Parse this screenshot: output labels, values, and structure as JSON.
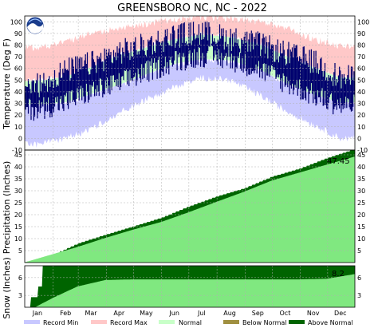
{
  "chart_data": {
    "type": "area",
    "title": "GREENSBORO NC, NC - 2022",
    "months": [
      "Jan",
      "Feb",
      "Mar",
      "Apr",
      "May",
      "Jun",
      "Jul",
      "Aug",
      "Sep",
      "Oct",
      "Nov",
      "Dec"
    ],
    "logo": "noaa-logo",
    "grid": true,
    "legend_position": "bottom",
    "legend": [
      {
        "label": "Record Min",
        "color": "#c8c8ff"
      },
      {
        "label": "Record Max",
        "color": "#ffc8c8"
      },
      {
        "label": "Normal",
        "color": "#c8ffc8"
      },
      {
        "label": "Below Normal",
        "color": "#a09040"
      },
      {
        "label": "Above Normal",
        "color": "#006400"
      }
    ],
    "panels": {
      "temperature": {
        "ylabel": "Temperature (Deg F)",
        "ylim": [
          -10,
          105
        ],
        "yticks": [
          100,
          90,
          80,
          70,
          60,
          50,
          40,
          30,
          20,
          10,
          0,
          -10
        ],
        "record_min_monthly": [
          -5,
          0,
          8,
          22,
          33,
          44,
          52,
          50,
          38,
          24,
          12,
          0
        ],
        "record_max_monthly": [
          78,
          82,
          90,
          94,
          98,
          102,
          104,
          103,
          100,
          95,
          85,
          79
        ],
        "normal_high_monthly": [
          49,
          53,
          61,
          71,
          78,
          85,
          89,
          87,
          81,
          71,
          61,
          52
        ],
        "normal_low_monthly": [
          29,
          31,
          38,
          46,
          55,
          64,
          68,
          67,
          60,
          48,
          38,
          31
        ],
        "observed_high_monthly": [
          45,
          58,
          64,
          74,
          80,
          88,
          91,
          86,
          81,
          73,
          66,
          52
        ],
        "observed_low_monthly": [
          25,
          31,
          40,
          47,
          57,
          66,
          71,
          68,
          60,
          48,
          37,
          28
        ],
        "colors": {
          "record_min": "#c8c8ff",
          "record_max": "#ffc8c8",
          "normal": "#c8ffc8",
          "observed": "#00006e"
        }
      },
      "precipitation": {
        "ylabel": "Precipitation (Inches)",
        "ylim": [
          0,
          47
        ],
        "yticks": [
          45,
          40,
          35,
          30,
          25,
          20,
          15,
          10,
          5
        ],
        "normal_cumulative_month_end": [
          3.4,
          6.5,
          10.3,
          13.7,
          16.9,
          20.9,
          25.3,
          29.6,
          34.2,
          37.6,
          40.9,
          44.3
        ],
        "observed_cumulative_month_end": [
          3.1,
          8.0,
          11.7,
          15.1,
          18.7,
          23.4,
          27.6,
          31.1,
          35.9,
          39.3,
          43.7,
          47.45
        ],
        "ytd_label": "47.45",
        "colors": {
          "normal": "#80e880",
          "above": "#006400"
        }
      },
      "snow": {
        "ylabel": "Snow (Inches)",
        "ylim": [
          1,
          8
        ],
        "yticks": [
          6,
          3
        ],
        "normal_cumulative_month_end": [
          2.5,
          4.5,
          5.6,
          5.7,
          5.7,
          5.7,
          5.7,
          5.7,
          5.7,
          5.7,
          5.8,
          6.6
        ],
        "observed_steps": [
          {
            "day": 1,
            "value": 1.0
          },
          {
            "day": 8,
            "value": 2.7
          },
          {
            "day": 16,
            "value": 4.5
          },
          {
            "day": 21,
            "value": 8.2
          }
        ],
        "ytd_label": "8.2",
        "colors": {
          "normal": "#80e880",
          "above": "#006400"
        }
      }
    }
  }
}
